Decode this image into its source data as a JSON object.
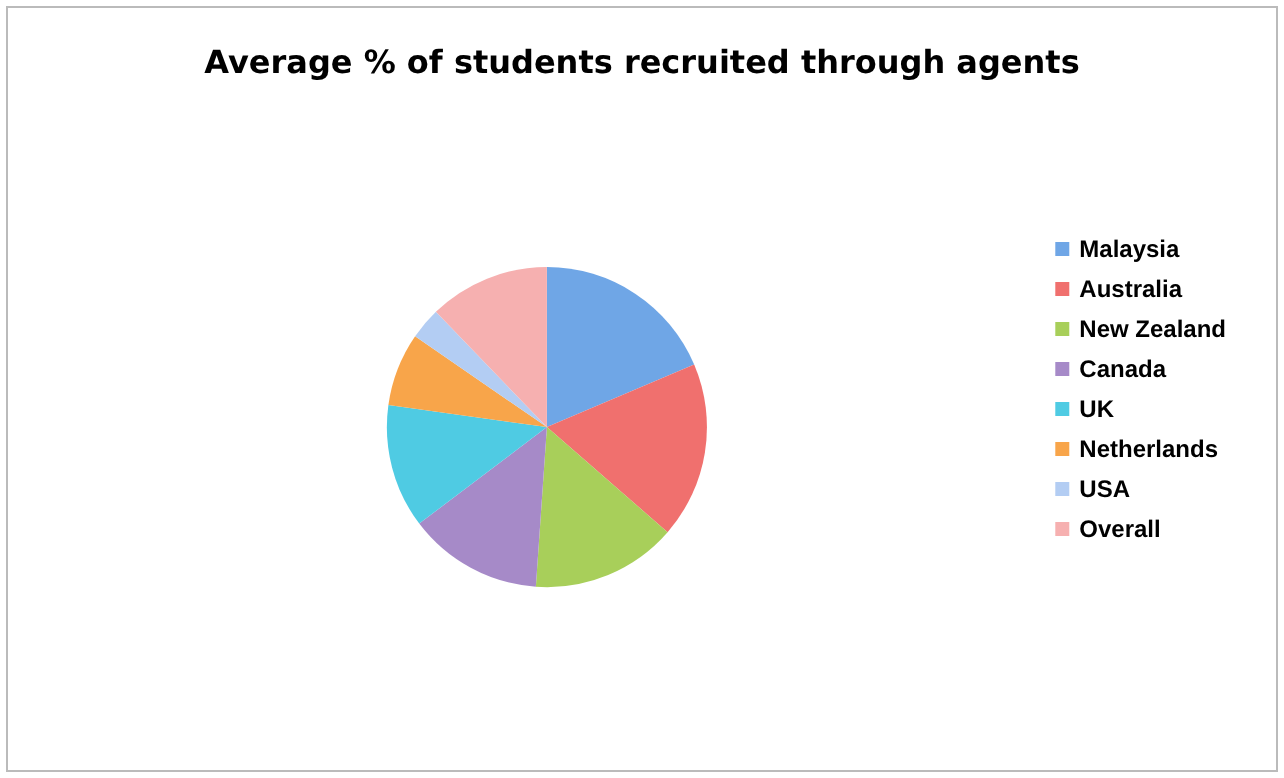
{
  "chart_data": {
    "type": "pie",
    "title": "Average % of students recruited through agents",
    "categories": [
      "Malaysia",
      "Australia",
      "New Zealand",
      "Canada",
      "UK",
      "Netherlands",
      "USA",
      "Overall"
    ],
    "values": [
      18.6,
      17.8,
      14.7,
      13.6,
      12.5,
      7.4,
      3.2,
      12.2
    ],
    "colors": [
      "#6fa6e6",
      "#f0706e",
      "#a8cf5a",
      "#a68ac8",
      "#4fcbe3",
      "#f8a54a",
      "#b3cdf3",
      "#f6b0b0"
    ],
    "legend": "right"
  }
}
